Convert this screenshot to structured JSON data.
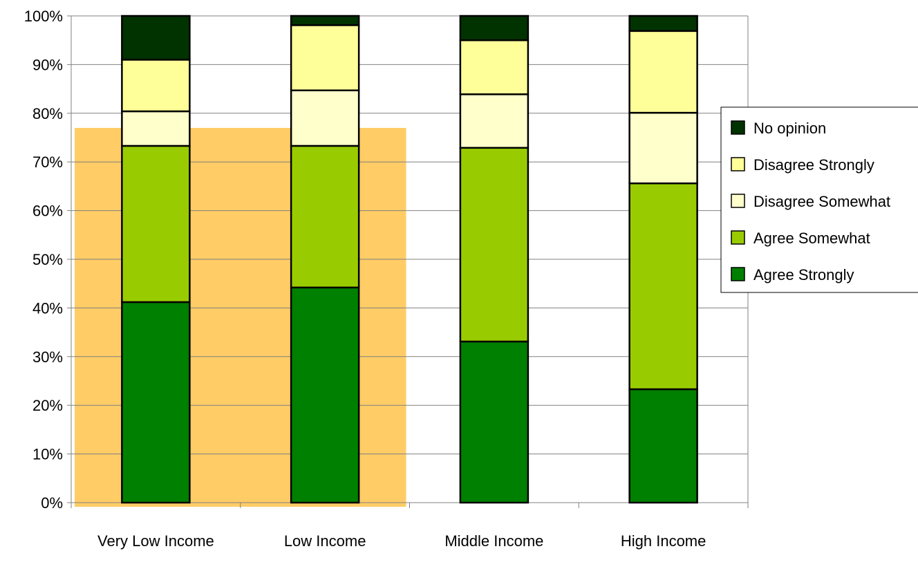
{
  "chart_data": {
    "type": "bar",
    "stacked": true,
    "percent_stacked": true,
    "categories": [
      "Very Low Income",
      "Low Income",
      "Middle Income",
      "High Income"
    ],
    "y_ticks": [
      "0%",
      "10%",
      "20%",
      "30%",
      "40%",
      "50%",
      "60%",
      "70%",
      "80%",
      "90%",
      "100%"
    ],
    "ylim": [
      0,
      100
    ],
    "grid": true,
    "legend_position": "right",
    "highlighted_categories": [
      "Very Low Income",
      "Low Income"
    ],
    "series": [
      {
        "name": "Agree Strongly",
        "color": "#008000",
        "values": [
          41.2,
          44.2,
          33.1,
          23.3
        ]
      },
      {
        "name": "Agree Somewhat",
        "color": "#99CC00",
        "values": [
          32.1,
          29.1,
          39.8,
          42.3
        ]
      },
      {
        "name": "Disagree Somewhat",
        "color": "#FFFFCC",
        "values": [
          7.1,
          11.4,
          11.0,
          14.5
        ]
      },
      {
        "name": "Disagree Strongly",
        "color": "#FFFF99",
        "values": [
          10.6,
          13.4,
          11.1,
          16.8
        ]
      },
      {
        "name": "No opinion",
        "color": "#003300",
        "values": [
          9.0,
          1.9,
          5.0,
          3.1
        ]
      }
    ],
    "highlight_color": "#FFCC66",
    "gridline_color": "#808080",
    "axis_color": "#808080"
  }
}
